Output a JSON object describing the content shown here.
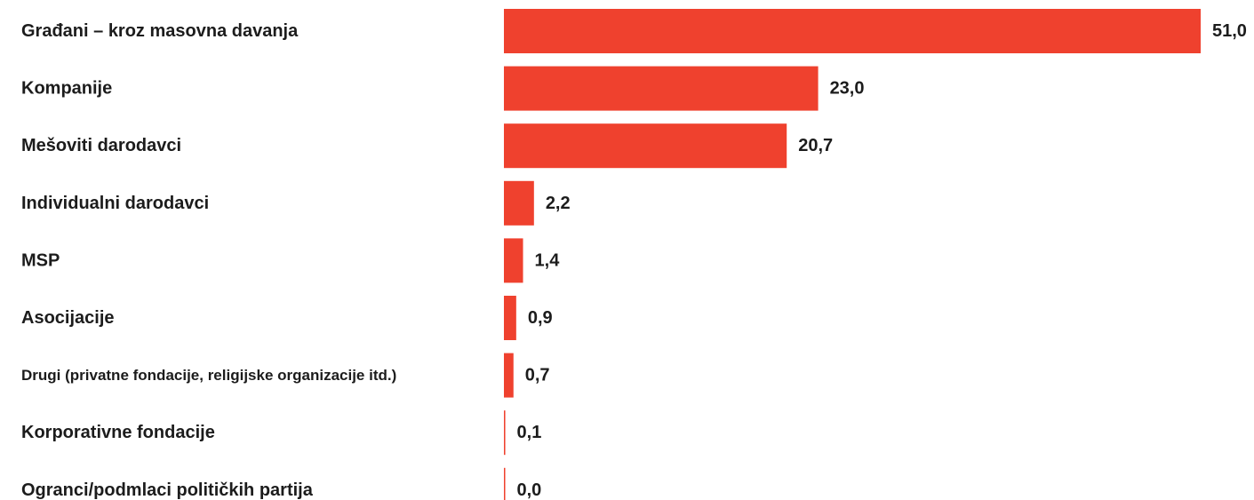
{
  "chart_data": {
    "type": "bar",
    "orientation": "horizontal",
    "categories": [
      "Građani – kroz masovna davanja",
      "Kompanije",
      "Mešoviti darodavci",
      "Individualni darodavci",
      "MSP",
      "Asocijacije",
      "Drugi (privatne fondacije, religijske organizacije itd.)",
      "Korporativne fondacije",
      "Ogranci/podmlaci političkih partija"
    ],
    "values": [
      51.0,
      23.0,
      20.7,
      2.2,
      1.4,
      0.9,
      0.7,
      0.1,
      0.0
    ],
    "value_labels": [
      "51,0",
      "23,0",
      "20,7",
      "2,2",
      "1,4",
      "0,9",
      "0,7",
      "0,1",
      "0,0"
    ],
    "title": "",
    "xlabel": "",
    "ylabel": "",
    "xlim": [
      0,
      51
    ],
    "grid": false,
    "legend": "none",
    "colors": {
      "bar": "#ef412e",
      "text": "#1c1c1c",
      "background": "#ffffff"
    }
  }
}
